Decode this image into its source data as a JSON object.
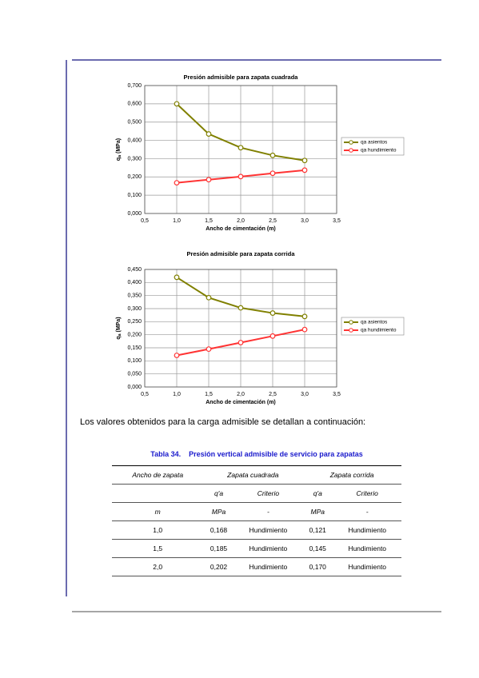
{
  "chart_data": [
    {
      "type": "line",
      "title": "Presión admisible para zapata cuadrada",
      "xlabel": "Ancho de cimentación (m)",
      "ylabel": "q",
      "ylabel_sub": "a",
      "ylabel_unit": "(MPa)",
      "x": [
        1.0,
        1.5,
        2.0,
        2.5,
        3.0
      ],
      "series": [
        {
          "name": "qa asientos",
          "color": "#808000",
          "values": [
            0.6,
            0.435,
            0.36,
            0.318,
            0.29
          ]
        },
        {
          "name": "qa hundimiento",
          "color": "#ff3333",
          "values": [
            0.168,
            0.185,
            0.202,
            0.22,
            0.237
          ]
        }
      ],
      "xlim": [
        0.5,
        3.5
      ],
      "xticks": [
        {
          "value": 0.5,
          "label": "0,5"
        },
        {
          "value": 1.0,
          "label": "1,0"
        },
        {
          "value": 1.5,
          "label": "1,5"
        },
        {
          "value": 2.0,
          "label": "2,0"
        },
        {
          "value": 2.5,
          "label": "2,5"
        },
        {
          "value": 3.0,
          "label": "3,0"
        },
        {
          "value": 3.5,
          "label": "3,5"
        }
      ],
      "ylim": [
        0,
        0.7
      ],
      "yticks": [
        {
          "value": 0,
          "label": "0,000"
        },
        {
          "value": 0.1,
          "label": "0,100"
        },
        {
          "value": 0.2,
          "label": "0,200"
        },
        {
          "value": 0.3,
          "label": "0,300"
        },
        {
          "value": 0.4,
          "label": "0,400"
        },
        {
          "value": 0.5,
          "label": "0,500"
        },
        {
          "value": 0.6,
          "label": "0,600"
        },
        {
          "value": 0.7,
          "label": "0,700"
        }
      ],
      "grid": true,
      "legend": "right"
    },
    {
      "type": "line",
      "title": "Presión admisible para zapata corrida",
      "xlabel": "Ancho de cimentación (m)",
      "ylabel": "q",
      "ylabel_sub": "a",
      "ylabel_unit": "(MPa)",
      "x": [
        1.0,
        1.5,
        2.0,
        2.5,
        3.0
      ],
      "series": [
        {
          "name": "qa asientos",
          "color": "#808000",
          "values": [
            0.42,
            0.342,
            0.303,
            0.283,
            0.27
          ]
        },
        {
          "name": "qa hundimiento",
          "color": "#ff3333",
          "values": [
            0.121,
            0.145,
            0.17,
            0.195,
            0.22
          ]
        }
      ],
      "xlim": [
        0.5,
        3.5
      ],
      "xticks": [
        {
          "value": 0.5,
          "label": "0,5"
        },
        {
          "value": 1.0,
          "label": "1,0"
        },
        {
          "value": 1.5,
          "label": "1,5"
        },
        {
          "value": 2.0,
          "label": "2,0"
        },
        {
          "value": 2.5,
          "label": "2,5"
        },
        {
          "value": 3.0,
          "label": "3,0"
        },
        {
          "value": 3.5,
          "label": "3,5"
        }
      ],
      "ylim": [
        0,
        0.45
      ],
      "yticks": [
        {
          "value": 0,
          "label": "0,000"
        },
        {
          "value": 0.05,
          "label": "0,050"
        },
        {
          "value": 0.1,
          "label": "0,100"
        },
        {
          "value": 0.15,
          "label": "0,150"
        },
        {
          "value": 0.2,
          "label": "0,200"
        },
        {
          "value": 0.25,
          "label": "0,250"
        },
        {
          "value": 0.3,
          "label": "0,300"
        },
        {
          "value": 0.35,
          "label": "0,350"
        },
        {
          "value": 0.4,
          "label": "0,400"
        },
        {
          "value": 0.45,
          "label": "0,450"
        }
      ],
      "grid": true,
      "legend": "right"
    }
  ],
  "paragraph": "Los valores obtenidos para la carga admisible se detallan a continuación:",
  "table": {
    "number": "Tabla 34.",
    "caption": "Presión vertical admisible de servicio para zapatas",
    "header": [
      "Ancho de zapata",
      "Zapata cuadrada",
      "Zapata corrida"
    ],
    "subheader": [
      "q'a",
      "Criterio",
      "q'a",
      "Criterio"
    ],
    "units": [
      "m",
      "MPa",
      "-",
      "MPa",
      "-"
    ],
    "rows": [
      [
        "1,0",
        "0,168",
        "Hundimiento",
        "0,121",
        "Hundimiento"
      ],
      [
        "1,5",
        "0,185",
        "Hundimiento",
        "0,145",
        "Hundimiento"
      ],
      [
        "2,0",
        "0,202",
        "Hundimiento",
        "0,170",
        "Hundimiento"
      ]
    ]
  }
}
